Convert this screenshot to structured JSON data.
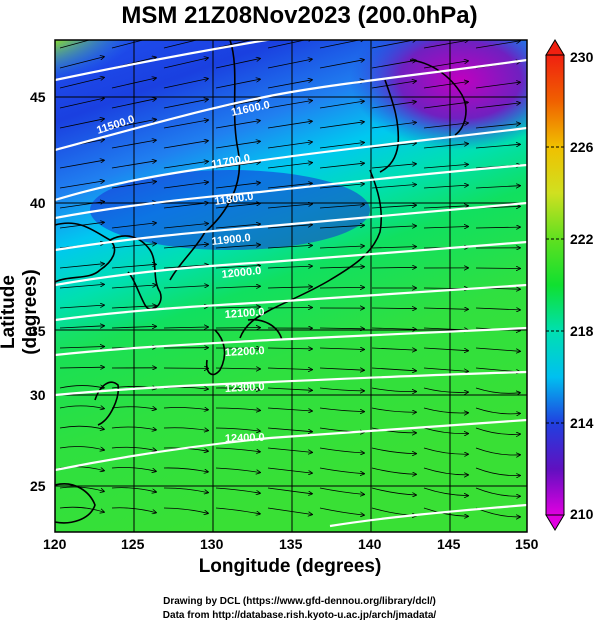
{
  "title": "MSM 21Z08Nov2023 (200.0hPa)",
  "axes": {
    "xlabel": "Longitude (degrees)",
    "ylabel": "Latitude  (degrees)",
    "xticks": [
      "120",
      "125",
      "130",
      "135",
      "140",
      "145",
      "150"
    ],
    "yticks": [
      "45",
      "40",
      "35",
      "30",
      "25"
    ]
  },
  "colorbar": {
    "ticks": [
      "230",
      "226",
      "222",
      "218",
      "214",
      "210"
    ],
    "min": 210,
    "max": 230,
    "colors": [
      "#e000e0",
      "#8000d0",
      "#2020e0",
      "#2070f0",
      "#00c0f0",
      "#00e0d0",
      "#00e090",
      "#20e020",
      "#80e020",
      "#d0e020",
      "#f0c000",
      "#f06000",
      "#f02010"
    ]
  },
  "contours": [
    {
      "label": "11600.0"
    },
    {
      "label": "11700.0"
    },
    {
      "label": "11800.0"
    },
    {
      "label": "11900.0"
    },
    {
      "label": "12000.0"
    },
    {
      "label": "12100.0"
    },
    {
      "label": "12200.0"
    },
    {
      "label": "12300.0"
    },
    {
      "label": "12400.0"
    },
    {
      "label": "11500.0"
    }
  ],
  "footer": {
    "line1": "Drawing by DCL (https://www.gfd-dennou.org/library/dcl/)",
    "line2": "Data from http://database.rish.kyoto-u.ac.jp/arch/jmadata/"
  }
}
